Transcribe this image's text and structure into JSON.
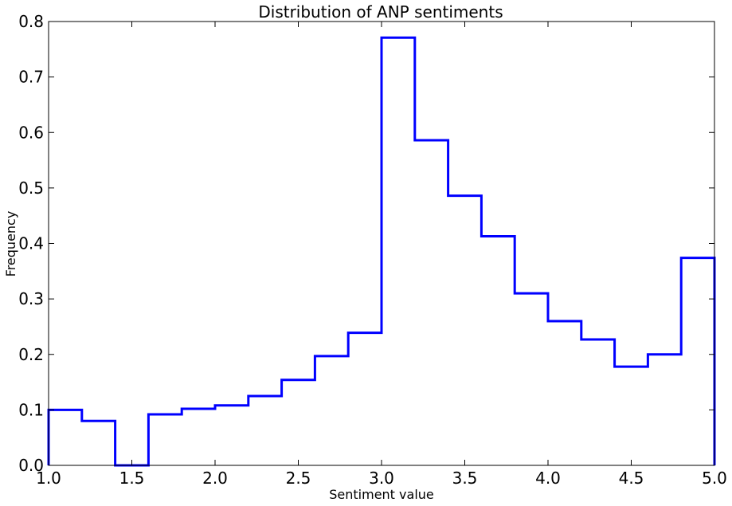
{
  "chart_data": {
    "type": "histogram",
    "title": "Distribution of ANP sentiments",
    "xlabel": "Sentiment value",
    "ylabel": "Frequency",
    "xlim": [
      1.0,
      5.0
    ],
    "ylim": [
      0.0,
      0.8
    ],
    "xticks": [
      "1.0",
      "1.5",
      "2.0",
      "2.5",
      "3.0",
      "3.5",
      "4.0",
      "4.5",
      "5.0"
    ],
    "yticks": [
      "0.0",
      "0.1",
      "0.2",
      "0.3",
      "0.4",
      "0.5",
      "0.6",
      "0.7",
      "0.8"
    ],
    "bin_edges": [
      1.0,
      1.2,
      1.4,
      1.6,
      1.8,
      2.0,
      2.2,
      2.4,
      2.6,
      2.8,
      3.0,
      3.2,
      3.4,
      3.6,
      3.8,
      4.0,
      4.2,
      4.4,
      4.6,
      4.8,
      5.0
    ],
    "values": [
      0.1,
      0.08,
      0.0,
      0.092,
      0.102,
      0.108,
      0.125,
      0.154,
      0.197,
      0.239,
      0.771,
      0.586,
      0.486,
      0.413,
      0.31,
      0.26,
      0.227,
      0.178,
      0.2,
      0.374
    ],
    "histtype": "step",
    "line_color": "#0000ff",
    "grid": false
  }
}
